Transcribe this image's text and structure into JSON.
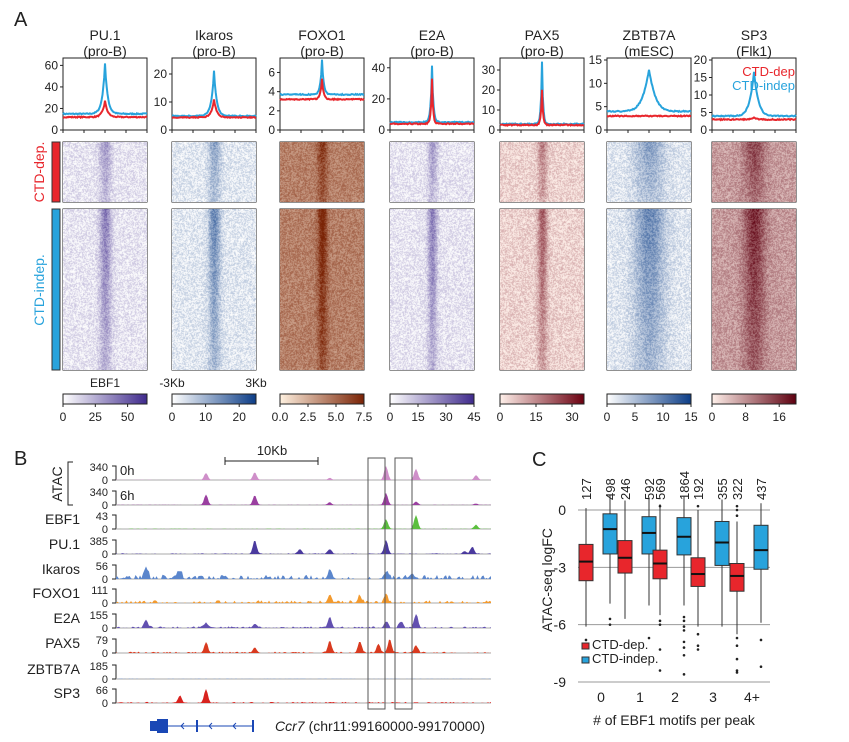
{
  "panel_labels": {
    "a": "A",
    "b": "B",
    "c": "C"
  },
  "colors": {
    "ctd_dep": "#e8262c",
    "ctd_indep": "#28a3dc"
  },
  "chart_data": [
    {
      "type": "line",
      "panel": "A",
      "row_labels": {
        "dep": "CTD-dep.",
        "indep": "CTD-indep."
      },
      "legend": {
        "dep": "CTD-dep",
        "indep": "CTD-indep"
      },
      "x_labels": {
        "first_column_label": "EBF1",
        "left": "-3Kb",
        "right": "3Kb"
      },
      "columns": [
        {
          "title": "PU.1",
          "sub": "(pro-B)",
          "ylim": [
            0,
            65
          ],
          "yticks": [
            "0",
            "20",
            "40",
            "60"
          ],
          "indep": {
            "base": 15,
            "peak": 62,
            "width": 0.05
          },
          "dep": {
            "base": 12,
            "peak": 27,
            "width": 0.05
          },
          "cmap": [
            "#ffffff",
            "#3f2a8c"
          ],
          "cticks": [
            "0",
            "25",
            "50"
          ],
          "cmax": 65,
          "heat": "purple"
        },
        {
          "title": "Ikaros",
          "sub": "(pro-B)",
          "ylim": [
            0,
            25
          ],
          "yticks": [
            "0",
            "10",
            "20"
          ],
          "indep": {
            "base": 5,
            "peak": 21,
            "width": 0.05
          },
          "dep": {
            "base": 4.5,
            "peak": 11,
            "width": 0.05
          },
          "cmap": [
            "#ffffff",
            "#0c3d87"
          ],
          "cticks": [
            "0",
            "10",
            "20"
          ],
          "cmax": 25,
          "heat": "blue"
        },
        {
          "title": "FOXO1",
          "sub": "(pro-B)",
          "ylim": [
            0,
            7.3
          ],
          "yticks": [
            "0",
            "2",
            "4",
            "6"
          ],
          "indep": {
            "base": 3.7,
            "peak": 7.3,
            "width": 0.03
          },
          "dep": {
            "base": 3.2,
            "peak": 5.3,
            "width": 0.03
          },
          "cmap": [
            "#fff1e0",
            "#7a2305"
          ],
          "cticks": [
            "0.0",
            "2.5",
            "5.0",
            "7.5"
          ],
          "cmax": 7.5,
          "heat": "orange"
        },
        {
          "title": "E2A",
          "sub": "(pro-B)",
          "ylim": [
            0,
            45
          ],
          "yticks": [
            "0",
            "20",
            "40"
          ],
          "indep": {
            "base": 5,
            "peak": 41,
            "width": 0.025
          },
          "dep": {
            "base": 4,
            "peak": 33,
            "width": 0.02
          },
          "cmap": [
            "#ffffff",
            "#3f2a8c"
          ],
          "cticks": [
            "0",
            "15",
            "30",
            "45"
          ],
          "cmax": 45,
          "heat": "purple"
        },
        {
          "title": "PAX5",
          "sub": "(pro-B)",
          "ylim": [
            0,
            35
          ],
          "yticks": [
            "0",
            "10",
            "20",
            "30"
          ],
          "indep": {
            "base": 3,
            "peak": 34,
            "width": 0.02
          },
          "dep": {
            "base": 2.5,
            "peak": 20,
            "width": 0.02
          },
          "cmap": [
            "#fff0ea",
            "#6b0010"
          ],
          "cticks": [
            "0",
            "15",
            "30"
          ],
          "cmax": 35,
          "heat": "red"
        },
        {
          "title": "ZBTB7A",
          "sub": "(mESC)",
          "ylim": [
            0,
            15
          ],
          "yticks": [
            "0",
            "5",
            "10",
            "15"
          ],
          "indep": {
            "base": 4,
            "peak": 13,
            "width": 0.13
          },
          "dep": {
            "base": 3,
            "peak": 3,
            "width": 0.1
          },
          "cmap": [
            "#ffffff",
            "#0c3d87"
          ],
          "cticks": [
            "0",
            "5",
            "10",
            "15"
          ],
          "cmax": 15,
          "heat": "blue"
        },
        {
          "title": "SP3",
          "sub": "(Flk1)",
          "ylim": [
            0,
            20
          ],
          "yticks": [
            "0",
            "5",
            "10",
            "15",
            "20"
          ],
          "indep": {
            "base": 4,
            "peak": 16.5,
            "width": 0.09
          },
          "dep": {
            "base": 3,
            "peak": 3.5,
            "width": 0.05
          },
          "cmap": [
            "#fff0ea",
            "#5e0010"
          ],
          "cticks": [
            "0",
            "8",
            "16"
          ],
          "cmax": 20,
          "heat": "red"
        }
      ]
    },
    {
      "type": "area",
      "panel": "B",
      "scale_bar": "10Kb",
      "group_label": "ATAC",
      "gene": {
        "name": "Ccr7",
        "locus": "(chr11:99160000-99170000)"
      },
      "tracks": [
        {
          "label": "0h",
          "max": "340",
          "min": "0",
          "color": "#cf8fc9",
          "group": "ATAC"
        },
        {
          "label": "6h",
          "max": "340",
          "min": "0",
          "color": "#9a3fa0",
          "group": "ATAC"
        },
        {
          "label": "EBF1",
          "max": "43",
          "min": "0",
          "color": "#5bbf3e"
        },
        {
          "label": "PU.1",
          "max": "385",
          "min": "0",
          "color": "#4a3a9e"
        },
        {
          "label": "Ikaros",
          "max": "56",
          "min": "0",
          "color": "#5b86cc"
        },
        {
          "label": "FOXO1",
          "max": "111",
          "min": "0",
          "color": "#f39a2e"
        },
        {
          "label": "E2A",
          "max": "155",
          "min": "0",
          "color": "#6250b0"
        },
        {
          "label": "PAX5",
          "max": "79",
          "min": "0",
          "color": "#d93a1f"
        },
        {
          "label": "ZBTB7A",
          "max": "185",
          "min": "0",
          "color": "#6a8fd0"
        },
        {
          "label": "SP3",
          "max": "66",
          "min": "0",
          "color": "#d8231f"
        }
      ]
    },
    {
      "type": "box",
      "panel": "C",
      "xlabel": "# of EBF1 motifs per peak",
      "ylabel": "ATAC-seq logFC",
      "ylim": [
        -9,
        0.9
      ],
      "yticks": [
        "0",
        "-3",
        "-6",
        "-9"
      ],
      "grid": true,
      "legend_placement": "bottom-left",
      "categories": [
        "0",
        "1",
        "2",
        "3",
        "4+"
      ],
      "series": [
        {
          "name": "CTD-dep.",
          "counts": [
            "127",
            "246",
            "569",
            "192",
            "322"
          ],
          "boxes": [
            {
              "low": -6.1,
              "q1": -3.7,
              "median": -2.7,
              "q3": -1.8,
              "high": 0.1,
              "outliers": [
                -6.8
              ]
            },
            {
              "low": -5.7,
              "q1": -3.3,
              "median": -2.5,
              "q3": -1.6,
              "high": 0.5,
              "outliers": []
            },
            {
              "low": -5.5,
              "q1": -3.6,
              "median": -2.8,
              "q3": -2.1,
              "high": 0.3,
              "outliers": [
                0.2,
                -5.8,
                -6.0,
                -7.3,
                -8.4
              ]
            },
            {
              "low": -6.1,
              "q1": -4.0,
              "median": -3.35,
              "q3": -2.5,
              "high": 0.0,
              "outliers": [
                0.2,
                -6.5,
                -7.1,
                -7.3
              ]
            },
            {
              "low": -6.5,
              "q1": -4.25,
              "median": -3.45,
              "q3": -2.8,
              "high": -0.6,
              "outliers": [
                0.2,
                0.0,
                -0.3,
                -6.7,
                -7.1,
                -7.8,
                -8.4,
                -8.5
              ]
            }
          ]
        },
        {
          "name": "CTD-indep.",
          "counts": [
            "498",
            "592",
            "1864",
            "355",
            "437"
          ],
          "boxes": [
            {
              "low": -4.9,
              "q1": -2.3,
              "median": -1.0,
              "q3": -0.2,
              "high": 0.8,
              "outliers": [
                -5.7,
                -6.0
              ]
            },
            {
              "low": -5.0,
              "q1": -2.3,
              "median": -1.2,
              "q3": -0.35,
              "high": 0.6,
              "outliers": [
                -6.7
              ]
            },
            {
              "low": -5.0,
              "q1": -2.35,
              "median": -1.4,
              "q3": -0.4,
              "high": 0.7,
              "outliers": [
                -5.6,
                -5.8,
                -6.1,
                -6.3,
                -6.9,
                -7.2,
                -7.6,
                -8.6
              ]
            },
            {
              "low": -6.1,
              "q1": -2.9,
              "median": -1.7,
              "q3": -0.6,
              "high": 0.55,
              "outliers": []
            },
            {
              "low": -5.9,
              "q1": -3.1,
              "median": -2.1,
              "q3": -0.8,
              "high": 0.35,
              "outliers": [
                -6.8,
                -8.2
              ]
            }
          ]
        }
      ]
    }
  ]
}
